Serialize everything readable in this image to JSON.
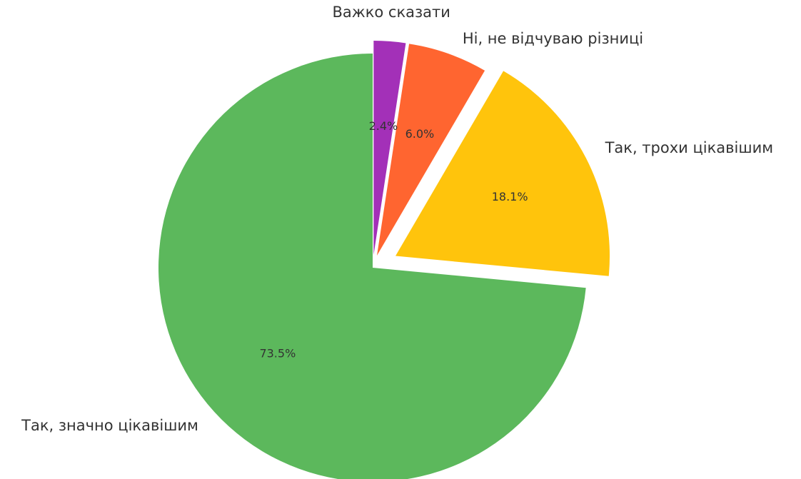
{
  "chart_data": {
    "type": "pie",
    "title": "",
    "start_angle_deg": 90,
    "direction": "clockwise",
    "slices": [
      {
        "label": "Важко сказати",
        "value": 2.4,
        "percent_label": "2.4%",
        "color": "#a330b8",
        "explode": 0.06
      },
      {
        "label": "Ні, не відчуваю різниці",
        "value": 6.0,
        "percent_label": "6.0%",
        "color": "#ff6530",
        "explode": 0.06
      },
      {
        "label": "Так, трохи цікавішим",
        "value": 18.1,
        "percent_label": "18.1%",
        "color": "#ffc40c",
        "explode": 0.12
      },
      {
        "label": "Так, значно цікавішим",
        "value": 73.5,
        "percent_label": "73.5%",
        "color": "#5cb85c",
        "explode": 0
      }
    ]
  }
}
